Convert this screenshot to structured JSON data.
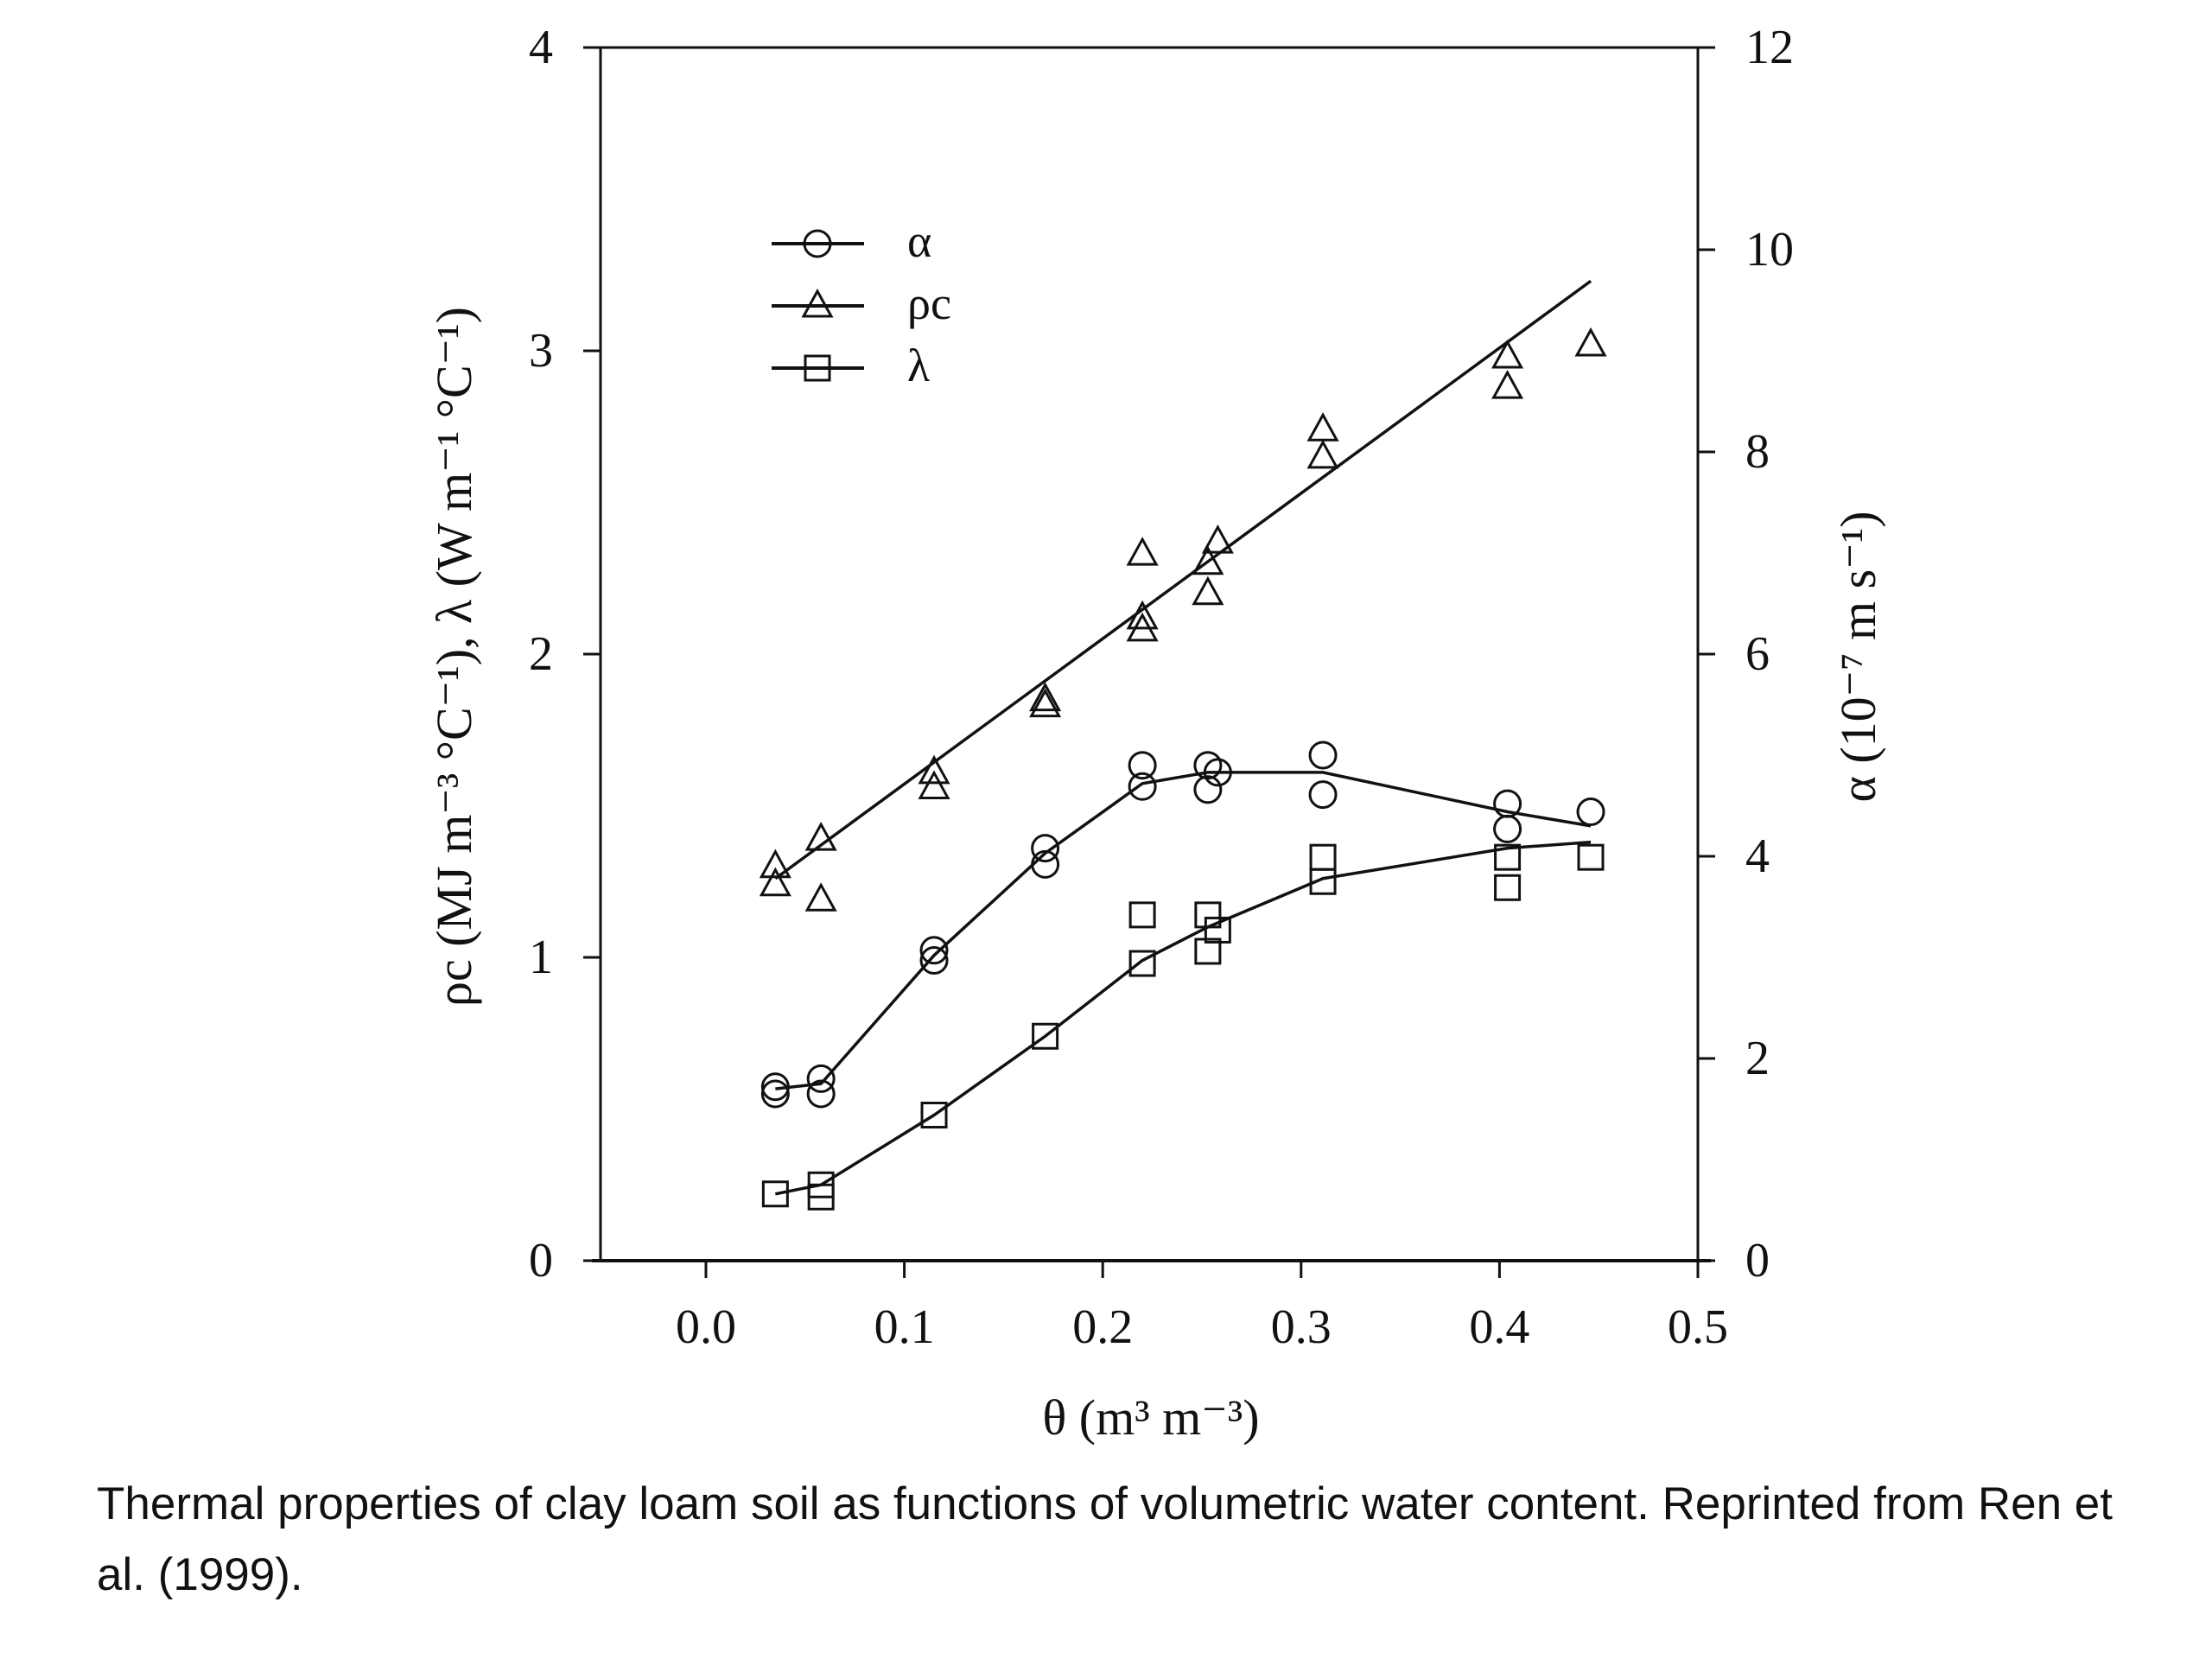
{
  "chart_data": {
    "type": "scatter",
    "xlabel": "θ (m³ m⁻³)",
    "ylabel_left": "ρc (MJ m⁻³ °C⁻¹), λ (W m⁻¹ °C⁻¹)",
    "ylabel_right": "α (10⁻⁷ m s⁻¹)",
    "xlim": [
      -0.05,
      0.5
    ],
    "ylim_left": [
      0,
      4
    ],
    "ylim_right": [
      0,
      12
    ],
    "x_ticks": [
      "0.0",
      "0.1",
      "0.2",
      "0.3",
      "0.4",
      "0.5"
    ],
    "x_tick_values": [
      0,
      0.1,
      0.2,
      0.3,
      0.4,
      0.5
    ],
    "y_left_ticks": [
      "0",
      "1",
      "2",
      "3",
      "4"
    ],
    "y_left_tick_values": [
      0,
      1,
      2,
      3,
      4
    ],
    "y_right_ticks": [
      "0",
      "2",
      "4",
      "6",
      "8",
      "10",
      "12"
    ],
    "y_right_tick_values": [
      0,
      2,
      4,
      6,
      8,
      10,
      12
    ],
    "legend_position": "top-left",
    "grid": false,
    "series": [
      {
        "name": "α",
        "marker": "circle",
        "axis": "right",
        "points": [
          [
            0.035,
            1.72
          ],
          [
            0.035,
            1.65
          ],
          [
            0.058,
            1.8
          ],
          [
            0.058,
            1.65
          ],
          [
            0.115,
            3.07
          ],
          [
            0.115,
            2.97
          ],
          [
            0.171,
            4.08
          ],
          [
            0.171,
            3.92
          ],
          [
            0.22,
            4.9
          ],
          [
            0.22,
            4.69
          ],
          [
            0.253,
            4.9
          ],
          [
            0.253,
            4.66
          ],
          [
            0.258,
            4.83
          ],
          [
            0.311,
            5.0
          ],
          [
            0.311,
            4.61
          ],
          [
            0.404,
            4.52
          ],
          [
            0.404,
            4.27
          ],
          [
            0.446,
            4.44
          ]
        ],
        "line": [
          [
            0.035,
            1.7
          ],
          [
            0.058,
            1.75
          ],
          [
            0.115,
            3.02
          ],
          [
            0.171,
            4.03
          ],
          [
            0.22,
            4.72
          ],
          [
            0.253,
            4.83
          ],
          [
            0.311,
            4.83
          ],
          [
            0.404,
            4.44
          ],
          [
            0.446,
            4.3
          ]
        ]
      },
      {
        "name": "ρc",
        "marker": "triangle",
        "axis": "left",
        "points": [
          [
            0.035,
            1.3
          ],
          [
            0.035,
            1.24
          ],
          [
            0.058,
            1.39
          ],
          [
            0.058,
            1.19
          ],
          [
            0.115,
            1.61
          ],
          [
            0.115,
            1.56
          ],
          [
            0.171,
            1.85
          ],
          [
            0.171,
            1.83
          ],
          [
            0.22,
            2.33
          ],
          [
            0.22,
            2.12
          ],
          [
            0.22,
            2.08
          ],
          [
            0.253,
            2.2
          ],
          [
            0.253,
            2.3
          ],
          [
            0.258,
            2.37
          ],
          [
            0.311,
            2.74
          ],
          [
            0.311,
            2.65
          ],
          [
            0.404,
            2.98
          ],
          [
            0.404,
            2.88
          ],
          [
            0.446,
            3.02
          ]
        ],
        "line": [
          [
            0.035,
            1.26
          ],
          [
            0.446,
            3.23
          ]
        ]
      },
      {
        "name": "λ",
        "marker": "square",
        "axis": "left",
        "points": [
          [
            0.035,
            0.22
          ],
          [
            0.058,
            0.25
          ],
          [
            0.058,
            0.21
          ],
          [
            0.115,
            0.48
          ],
          [
            0.171,
            0.74
          ],
          [
            0.22,
            1.14
          ],
          [
            0.22,
            0.98
          ],
          [
            0.253,
            1.14
          ],
          [
            0.253,
            1.02
          ],
          [
            0.258,
            1.09
          ],
          [
            0.311,
            1.33
          ],
          [
            0.311,
            1.25
          ],
          [
            0.404,
            1.33
          ],
          [
            0.404,
            1.23
          ],
          [
            0.446,
            1.33
          ]
        ],
        "line": [
          [
            0.035,
            0.22
          ],
          [
            0.058,
            0.25
          ],
          [
            0.115,
            0.48
          ],
          [
            0.171,
            0.74
          ],
          [
            0.22,
            0.99
          ],
          [
            0.253,
            1.1
          ],
          [
            0.311,
            1.26
          ],
          [
            0.404,
            1.36
          ],
          [
            0.446,
            1.38
          ]
        ]
      }
    ]
  },
  "caption": "Thermal properties of clay loam soil as functions of volumetric water content.  Reprinted from Ren et al. (1999)."
}
